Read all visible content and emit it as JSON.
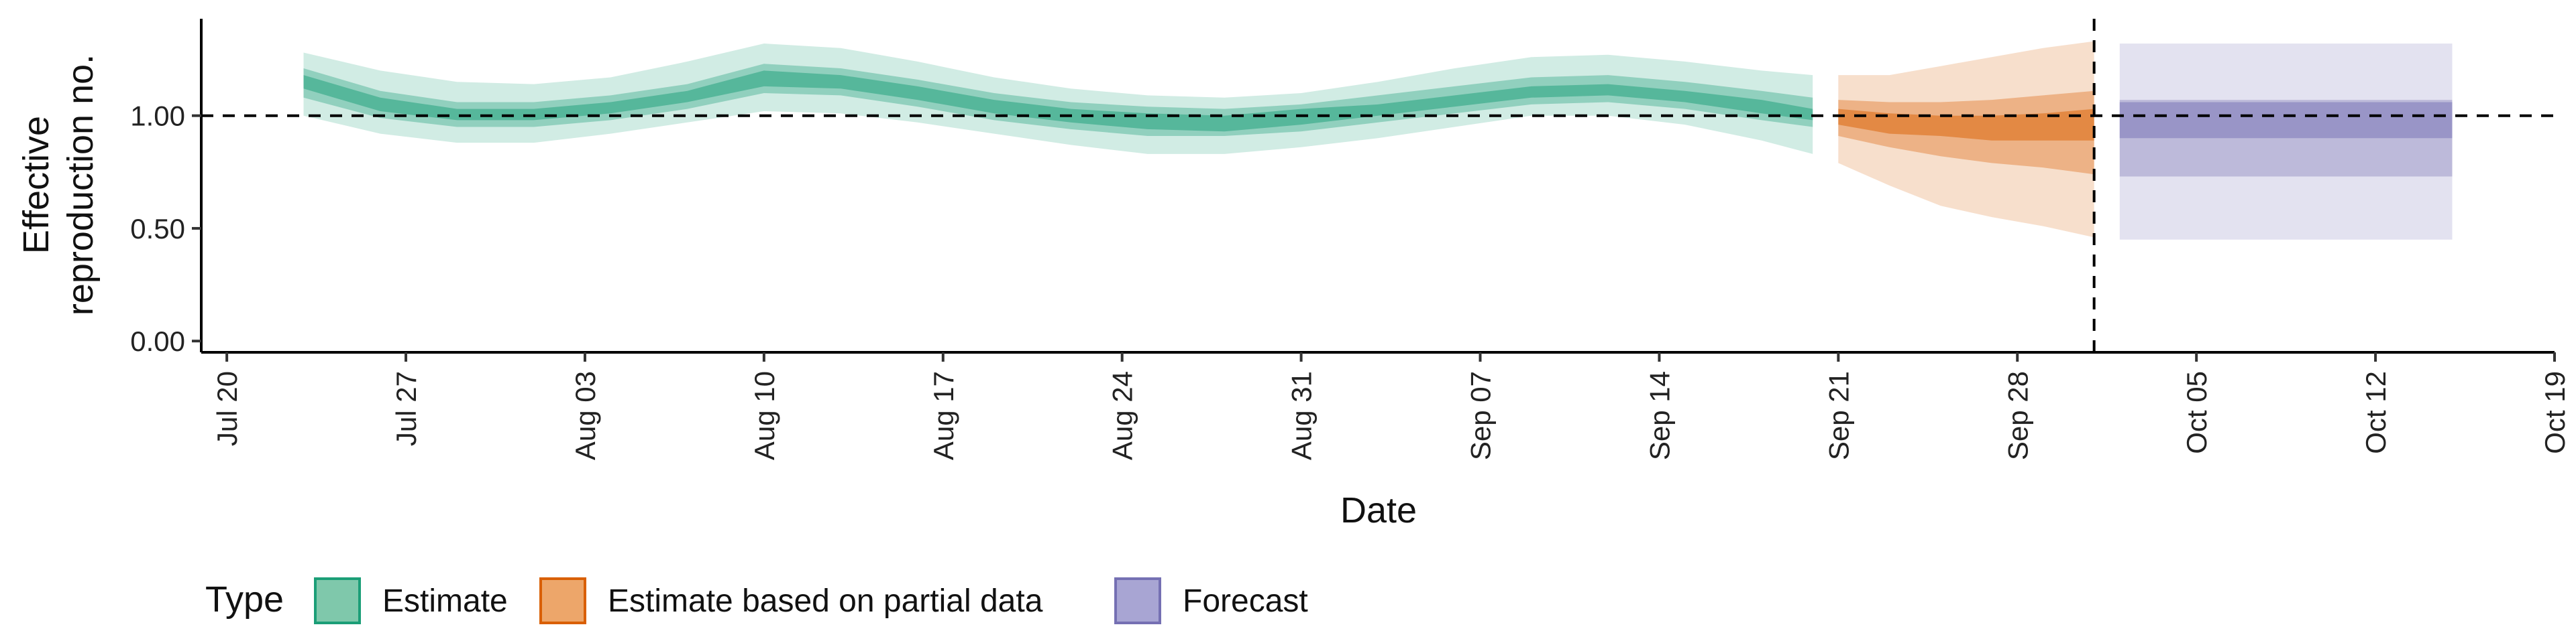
{
  "chart_data": {
    "type": "area",
    "xlabel": "Date",
    "ylabel_lines": [
      "Effective",
      "reproduction no."
    ],
    "y_ticks": [
      0.0,
      0.5,
      1.0
    ],
    "y_tick_labels": [
      "0.00",
      "0.50",
      "1.00"
    ],
    "ylim": [
      -0.05,
      1.43
    ],
    "x_ticks": [
      "2020-07-20",
      "2020-07-27",
      "2020-08-03",
      "2020-08-10",
      "2020-08-17",
      "2020-08-24",
      "2020-08-31",
      "2020-09-07",
      "2020-09-14",
      "2020-09-21",
      "2020-09-28",
      "2020-10-05",
      "2020-10-12",
      "2020-10-19"
    ],
    "x_tick_labels": [
      "Jul 20",
      "Jul 27",
      "Aug 03",
      "Aug 10",
      "Aug 17",
      "Aug 24",
      "Aug 31",
      "Sep 07",
      "Sep 14",
      "Sep 21",
      "Sep 28",
      "Oct 05",
      "Oct 12",
      "Oct 19"
    ],
    "xlim": [
      "2020-07-19",
      "2020-10-19"
    ],
    "reference_line_y": 1.0,
    "reference_line_date": "2020-10-01",
    "legend_title": "Type",
    "legend_position": "bottom",
    "series": [
      {
        "name": "Estimate",
        "color": "#1b9e77",
        "dates": [
          "2020-07-23",
          "2020-07-26",
          "2020-07-29",
          "2020-08-01",
          "2020-08-04",
          "2020-08-07",
          "2020-08-10",
          "2020-08-13",
          "2020-08-16",
          "2020-08-19",
          "2020-08-22",
          "2020-08-25",
          "2020-08-28",
          "2020-08-31",
          "2020-09-03",
          "2020-09-06",
          "2020-09-09",
          "2020-09-12",
          "2020-09-15",
          "2020-09-18",
          "2020-09-20"
        ],
        "median": [
          1.15,
          1.05,
          1.0,
          1.0,
          1.03,
          1.08,
          1.16,
          1.15,
          1.1,
          1.04,
          1.0,
          0.97,
          0.96,
          0.99,
          1.02,
          1.06,
          1.1,
          1.11,
          1.08,
          1.04,
          1.0
        ],
        "lower_90": [
          1.0,
          0.92,
          0.88,
          0.88,
          0.92,
          0.97,
          1.02,
          1.01,
          0.97,
          0.92,
          0.87,
          0.83,
          0.83,
          0.86,
          0.9,
          0.95,
          1.0,
          1.0,
          0.96,
          0.89,
          0.83
        ],
        "upper_90": [
          1.28,
          1.2,
          1.15,
          1.14,
          1.17,
          1.24,
          1.32,
          1.3,
          1.24,
          1.17,
          1.12,
          1.09,
          1.08,
          1.1,
          1.15,
          1.21,
          1.26,
          1.27,
          1.24,
          1.2,
          1.18
        ],
        "lower_50": [
          1.08,
          0.99,
          0.95,
          0.95,
          0.98,
          1.03,
          1.1,
          1.09,
          1.04,
          0.98,
          0.94,
          0.91,
          0.91,
          0.93,
          0.97,
          1.01,
          1.05,
          1.06,
          1.03,
          0.98,
          0.95
        ],
        "upper_50": [
          1.21,
          1.11,
          1.06,
          1.06,
          1.09,
          1.14,
          1.23,
          1.21,
          1.16,
          1.1,
          1.06,
          1.04,
          1.03,
          1.05,
          1.09,
          1.13,
          1.17,
          1.18,
          1.15,
          1.11,
          1.08
        ],
        "lower_20": [
          1.12,
          1.02,
          0.98,
          0.98,
          1.01,
          1.06,
          1.13,
          1.12,
          1.07,
          1.01,
          0.97,
          0.94,
          0.93,
          0.96,
          1.0,
          1.04,
          1.08,
          1.09,
          1.06,
          1.01,
          0.98
        ],
        "upper_20": [
          1.18,
          1.08,
          1.03,
          1.03,
          1.06,
          1.11,
          1.2,
          1.18,
          1.13,
          1.07,
          1.03,
          1.01,
          1.0,
          1.03,
          1.05,
          1.09,
          1.13,
          1.14,
          1.11,
          1.07,
          1.03
        ]
      },
      {
        "name": "Estimate based on partial data",
        "color": "#d95f02",
        "dates": [
          "2020-09-21",
          "2020-09-23",
          "2020-09-25",
          "2020-09-27",
          "2020-09-29",
          "2020-10-01"
        ],
        "median": [
          1.0,
          0.97,
          0.96,
          0.95,
          0.95,
          0.96
        ],
        "lower_90": [
          0.79,
          0.69,
          0.6,
          0.55,
          0.51,
          0.46
        ],
        "upper_90": [
          1.18,
          1.18,
          1.22,
          1.26,
          1.3,
          1.33
        ],
        "lower_50": [
          0.91,
          0.86,
          0.82,
          0.79,
          0.77,
          0.74
        ],
        "upper_50": [
          1.07,
          1.06,
          1.06,
          1.07,
          1.09,
          1.11
        ],
        "lower_20": [
          0.96,
          0.92,
          0.91,
          0.89,
          0.89,
          0.89
        ],
        "upper_20": [
          1.03,
          1.01,
          1.0,
          1.0,
          1.01,
          1.03
        ]
      },
      {
        "name": "Forecast",
        "color": "#7570b3",
        "dates": [
          "2020-10-02",
          "2020-10-15"
        ],
        "median": [
          0.98,
          0.98
        ],
        "lower_90": [
          0.45,
          0.45
        ],
        "upper_90": [
          1.32,
          1.32
        ],
        "lower_50": [
          0.73,
          0.73
        ],
        "upper_50": [
          1.07,
          1.07
        ],
        "lower_20": [
          0.9,
          0.9
        ],
        "upper_20": [
          1.06,
          1.06
        ]
      }
    ]
  }
}
